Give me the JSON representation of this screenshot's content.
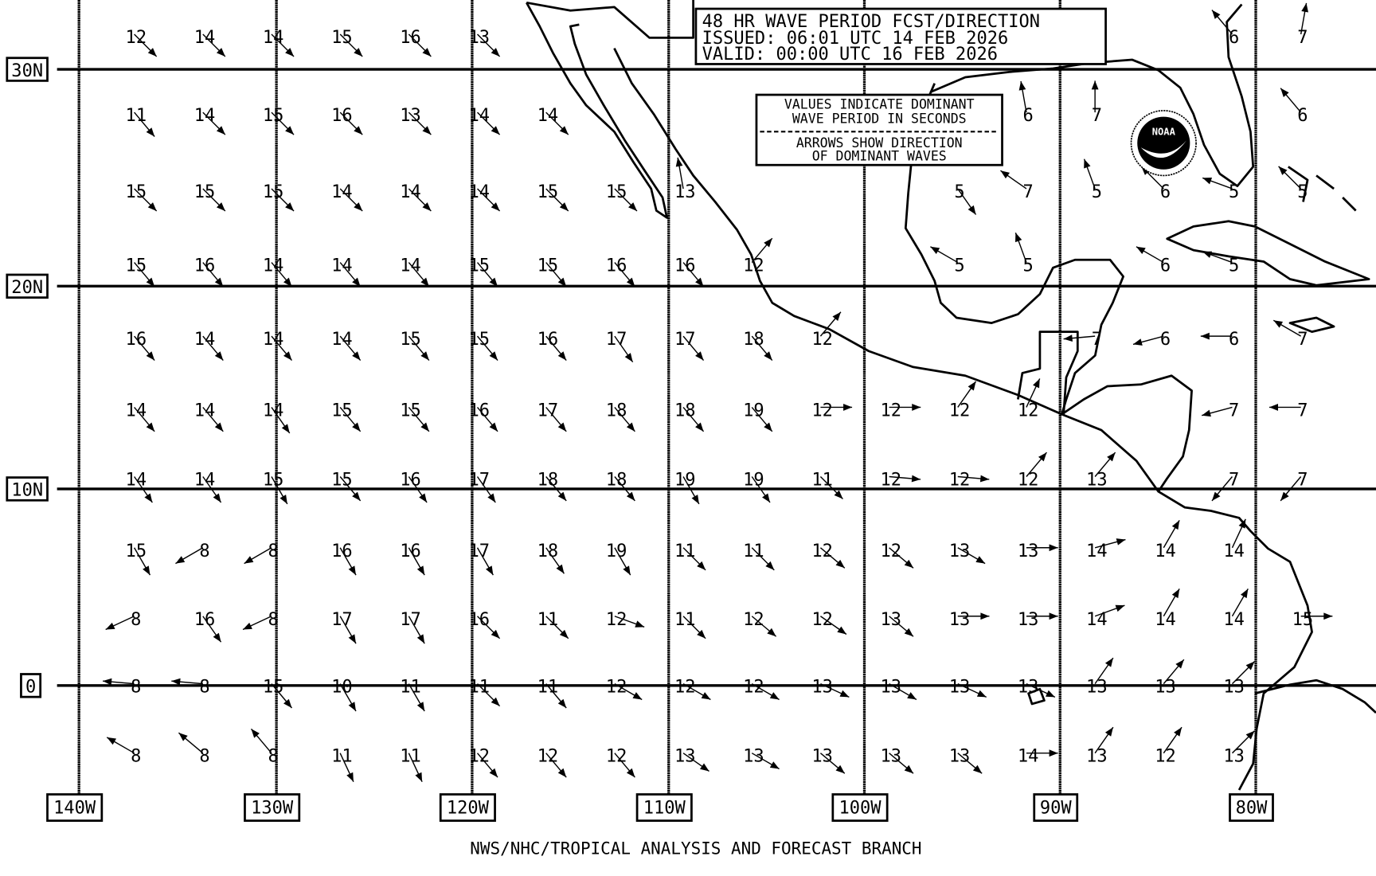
{
  "title": {
    "line1": "48 HR WAVE PERIOD FCST/DIRECTION",
    "line2": "ISSUED:  06:01 UTC 14 FEB 2026",
    "line3": "VALID:   00:00 UTC 16 FEB 2026"
  },
  "legend": {
    "line1": "VALUES INDICATE DOMINANT",
    "line2": "WAVE PERIOD IN SECONDS",
    "line3": "ARROWS SHOW DIRECTION",
    "line4": "OF DOMINANT WAVES"
  },
  "logo_text": "NOAA",
  "footer": "NWS/NHC/TROPICAL ANALYSIS AND FORECAST BRANCH",
  "lat_labels": [
    "30N",
    "20N",
    "10N",
    "0"
  ],
  "lon_labels": [
    "140W",
    "130W",
    "120W",
    "110W",
    "100W",
    "90W",
    "80W"
  ],
  "colors": {
    "background": "#ffffff",
    "ink": "#000000"
  },
  "units": "wave period in seconds; arrow = direction toward which waves travel (compass degrees)",
  "rows": [
    [
      [
        0,
        12,
        135
      ],
      [
        1,
        14,
        135
      ],
      [
        2,
        14,
        135
      ],
      [
        3,
        15,
        135
      ],
      [
        4,
        16,
        135
      ],
      [
        5,
        13,
        135
      ],
      [
        16,
        6,
        320
      ],
      [
        17,
        7,
        10
      ]
    ],
    [
      [
        0,
        11,
        140
      ],
      [
        1,
        14,
        135
      ],
      [
        2,
        15,
        135
      ],
      [
        3,
        16,
        135
      ],
      [
        4,
        13,
        135
      ],
      [
        5,
        14,
        135
      ],
      [
        6,
        14,
        135
      ],
      [
        13,
        6,
        350
      ],
      [
        14,
        7,
        0
      ],
      [
        17,
        6,
        320
      ]
    ],
    [
      [
        0,
        15,
        135
      ],
      [
        1,
        15,
        135
      ],
      [
        2,
        15,
        135
      ],
      [
        3,
        14,
        135
      ],
      [
        4,
        14,
        135
      ],
      [
        5,
        14,
        135
      ],
      [
        6,
        15,
        135
      ],
      [
        7,
        15,
        135
      ],
      [
        8,
        13,
        350
      ],
      [
        12,
        5,
        145
      ],
      [
        13,
        7,
        305
      ],
      [
        14,
        5,
        340
      ],
      [
        15,
        6,
        315
      ],
      [
        16,
        5,
        290
      ],
      [
        17,
        5,
        315
      ]
    ],
    [
      [
        0,
        15,
        140
      ],
      [
        1,
        16,
        140
      ],
      [
        2,
        14,
        140
      ],
      [
        3,
        14,
        140
      ],
      [
        4,
        14,
        140
      ],
      [
        5,
        15,
        140
      ],
      [
        6,
        15,
        140
      ],
      [
        7,
        16,
        140
      ],
      [
        8,
        16,
        140
      ],
      [
        9,
        12,
        40
      ],
      [
        12,
        5,
        300
      ],
      [
        13,
        5,
        340
      ],
      [
        15,
        6,
        300
      ],
      [
        16,
        5,
        290
      ]
    ],
    [
      [
        0,
        16,
        140
      ],
      [
        1,
        14,
        140
      ],
      [
        2,
        14,
        140
      ],
      [
        3,
        14,
        140
      ],
      [
        4,
        15,
        140
      ],
      [
        5,
        15,
        140
      ],
      [
        6,
        16,
        140
      ],
      [
        7,
        17,
        145
      ],
      [
        8,
        17,
        140
      ],
      [
        9,
        18,
        140
      ],
      [
        10,
        12,
        40
      ],
      [
        14,
        7,
        265
      ],
      [
        15,
        6,
        255
      ],
      [
        16,
        6,
        270
      ],
      [
        17,
        7,
        300
      ]
    ],
    [
      [
        0,
        14,
        140
      ],
      [
        1,
        14,
        140
      ],
      [
        2,
        14,
        145
      ],
      [
        3,
        15,
        140
      ],
      [
        4,
        15,
        140
      ],
      [
        5,
        16,
        140
      ],
      [
        6,
        17,
        140
      ],
      [
        7,
        18,
        140
      ],
      [
        8,
        18,
        140
      ],
      [
        9,
        19,
        140
      ],
      [
        10,
        12,
        90
      ],
      [
        11,
        12,
        90
      ],
      [
        12,
        12,
        35
      ],
      [
        13,
        12,
        25
      ],
      [
        16,
        7,
        255
      ],
      [
        17,
        7,
        270
      ]
    ],
    [
      [
        0,
        14,
        145
      ],
      [
        1,
        14,
        145
      ],
      [
        2,
        15,
        150
      ],
      [
        3,
        15,
        140
      ],
      [
        4,
        16,
        145
      ],
      [
        5,
        17,
        145
      ],
      [
        6,
        18,
        140
      ],
      [
        7,
        18,
        140
      ],
      [
        8,
        19,
        150
      ],
      [
        9,
        19,
        145
      ],
      [
        10,
        11,
        135
      ],
      [
        11,
        12,
        95
      ],
      [
        12,
        12,
        95
      ],
      [
        13,
        12,
        40
      ],
      [
        14,
        13,
        40
      ],
      [
        16,
        7,
        220
      ],
      [
        17,
        7,
        220
      ]
    ],
    [
      [
        0,
        15,
        150
      ],
      [
        1,
        8,
        240
      ],
      [
        2,
        8,
        240
      ],
      [
        3,
        16,
        150
      ],
      [
        4,
        16,
        150
      ],
      [
        5,
        17,
        150
      ],
      [
        6,
        18,
        145
      ],
      [
        7,
        19,
        150
      ],
      [
        8,
        11,
        135
      ],
      [
        9,
        11,
        135
      ],
      [
        10,
        12,
        130
      ],
      [
        11,
        12,
        130
      ],
      [
        12,
        13,
        120
      ],
      [
        13,
        13,
        90
      ],
      [
        14,
        14,
        75
      ],
      [
        15,
        14,
        30
      ],
      [
        16,
        14,
        25
      ]
    ],
    [
      [
        0,
        8,
        245
      ],
      [
        1,
        16,
        145
      ],
      [
        2,
        8,
        245
      ],
      [
        3,
        17,
        150
      ],
      [
        4,
        17,
        150
      ],
      [
        5,
        16,
        135
      ],
      [
        6,
        11,
        135
      ],
      [
        7,
        12,
        110
      ],
      [
        8,
        11,
        135
      ],
      [
        9,
        12,
        130
      ],
      [
        10,
        12,
        125
      ],
      [
        11,
        13,
        130
      ],
      [
        12,
        13,
        90
      ],
      [
        13,
        13,
        90
      ],
      [
        14,
        14,
        70
      ],
      [
        15,
        14,
        30
      ],
      [
        16,
        14,
        30
      ],
      [
        17,
        15,
        90
      ]
    ],
    [
      [
        0,
        8,
        275
      ],
      [
        1,
        8,
        275
      ],
      [
        2,
        15,
        140
      ],
      [
        3,
        10,
        150
      ],
      [
        4,
        11,
        150
      ],
      [
        5,
        11,
        135
      ],
      [
        6,
        11,
        140
      ],
      [
        7,
        12,
        120
      ],
      [
        8,
        12,
        120
      ],
      [
        9,
        12,
        120
      ],
      [
        10,
        13,
        115
      ],
      [
        11,
        13,
        120
      ],
      [
        12,
        13,
        115
      ],
      [
        13,
        13,
        115
      ],
      [
        14,
        13,
        35
      ],
      [
        15,
        13,
        40
      ],
      [
        16,
        13,
        45
      ]
    ],
    [
      [
        0,
        8,
        300
      ],
      [
        1,
        8,
        310
      ],
      [
        2,
        8,
        320
      ],
      [
        3,
        11,
        155
      ],
      [
        4,
        11,
        155
      ],
      [
        5,
        12,
        140
      ],
      [
        6,
        12,
        140
      ],
      [
        7,
        12,
        140
      ],
      [
        8,
        13,
        125
      ],
      [
        9,
        13,
        120
      ],
      [
        10,
        13,
        130
      ],
      [
        11,
        13,
        130
      ],
      [
        12,
        13,
        130
      ],
      [
        13,
        14,
        90
      ],
      [
        14,
        13,
        35
      ],
      [
        15,
        12,
        35
      ],
      [
        16,
        13,
        45
      ]
    ]
  ]
}
